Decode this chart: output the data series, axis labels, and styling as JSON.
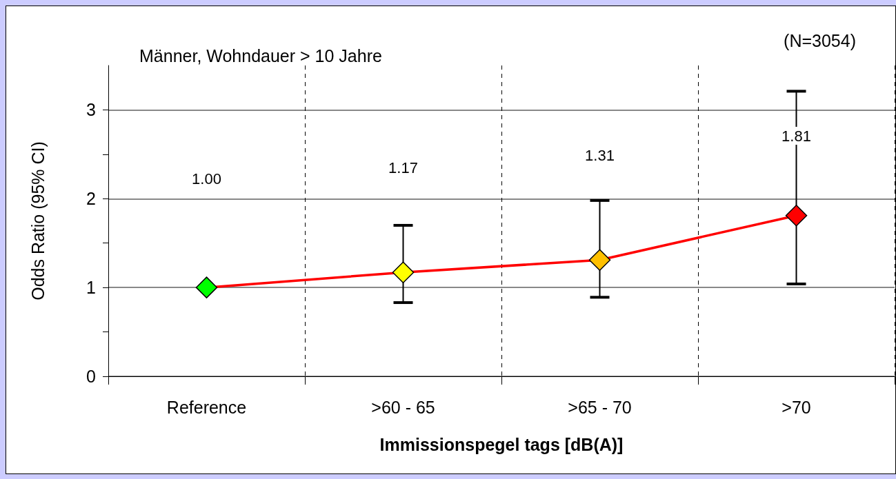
{
  "chart_data": {
    "type": "line",
    "xlabel": "Immissionspegel tags [dB(A)]",
    "ylabel": "Odds Ratio (95% CI)",
    "annotations": [
      "Männer, Wohndauer > 10 Jahre",
      "(N=3054)",
      "1.00",
      "1.17",
      "1.31",
      "1.81"
    ],
    "categories": [
      "Reference",
      ">60 - 65",
      ">65 - 70",
      ">70"
    ],
    "series": [
      {
        "color": "#ff0000",
        "colors": [
          "#00ff00",
          "#ffff00",
          "#ffc000",
          "#ff0000"
        ],
        "values": [
          1.0,
          1.17,
          1.31,
          1.81
        ],
        "errors": [
          null,
          [
            0.83,
            1.7
          ],
          [
            0.89,
            1.98
          ],
          [
            1.04,
            3.21
          ]
        ]
      }
    ],
    "ylim": [
      0,
      3.5
    ],
    "yticks": [
      0,
      {
        "value": 0.5,
        "label": null
      },
      1,
      {
        "value": 1.5,
        "label": null
      },
      2,
      {
        "value": 2.5,
        "label": null
      },
      3
    ],
    "grid": true,
    "marker": "diamond",
    "line_style": "solid"
  }
}
